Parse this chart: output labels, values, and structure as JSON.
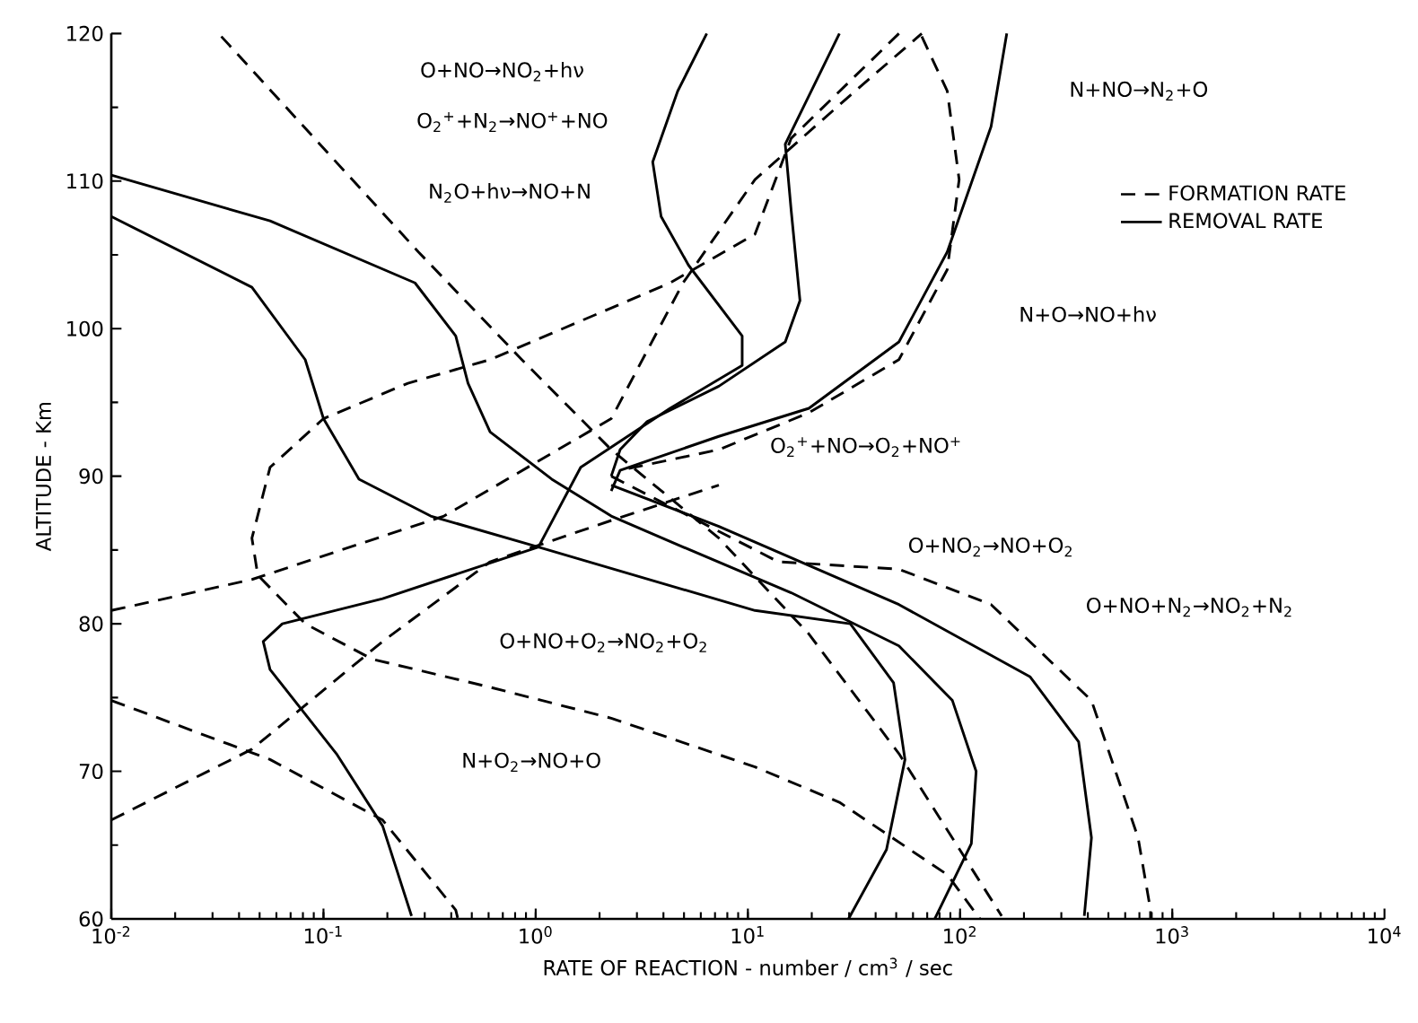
{
  "chart_data": {
    "type": "line",
    "xlabel": "RATE OF REACTION - number / cm$^{3}$ / sec",
    "ylabel": "ALTITUDE - Km",
    "log": "x",
    "xlim": [
      0.01,
      10000
    ],
    "ylim": [
      60,
      120
    ],
    "xticks": [
      {
        "value": 0.01,
        "label": "10$^{-2}$"
      },
      {
        "value": 0.1,
        "label": "10$^{-1}$"
      },
      {
        "value": 1,
        "label": "10$^{0}$"
      },
      {
        "value": 10,
        "label": "10$^{1}$"
      },
      {
        "value": 100,
        "label": "10$^{2}$"
      },
      {
        "value": 1000,
        "label": "10$^{3}$"
      },
      {
        "value": 10000,
        "label": "10$^{4}$"
      }
    ],
    "yticks": [
      60,
      {
        "value": 65,
        "label": null
      },
      70,
      {
        "value": 75,
        "label": null
      },
      80,
      {
        "value": 85,
        "label": null
      },
      90,
      {
        "value": 95,
        "label": null
      },
      100,
      {
        "value": 105,
        "label": null
      },
      110,
      {
        "value": 115,
        "label": null
      },
      120
    ],
    "legend": "top right",
    "series": [
      {
        "name": "FORMATION RATE",
        "line_style": "dashed",
        "color": "#000000",
        "x": [
          0.033,
          0.28,
          0.86,
          2.27,
          7.3,
          19.4,
          51.5,
          157
        ],
        "values": [
          119.8,
          105.2,
          97.9,
          91.8,
          85.8,
          79.3,
          71.2,
          60.2
        ]
      },
      {
        "name": "REMOVAL RATE",
        "line_style": "solid",
        "color": "#000000",
        "x": [
          0.01,
          0.056,
          0.27,
          0.42,
          0.48,
          0.61,
          1.19,
          2.27,
          4.95,
          16,
          51.5,
          92,
          119,
          113,
          76
        ],
        "values": [
          110.4,
          107.3,
          103.1,
          99.5,
          96.3,
          93,
          89.8,
          87.3,
          85.2,
          82.1,
          78.5,
          74.8,
          70,
          65.1,
          60
        ]
      },
      {
        "line_style": "solid",
        "color": "#000000",
        "x": [
          0.01,
          0.046,
          0.082,
          0.1,
          0.147,
          0.32,
          1.03,
          10.8,
          30.4,
          48.6,
          55,
          45,
          29.8
        ],
        "values": [
          107.6,
          102.8,
          97.9,
          93.9,
          89.8,
          87.3,
          85.2,
          80.9,
          80,
          76,
          70.8,
          64.7,
          60
        ]
      },
      {
        "line_style": "solid",
        "color": "#000000",
        "x": [
          6.4,
          4.67,
          3.56,
          3.9,
          5.25,
          9.4,
          9.4,
          4.3,
          1.63,
          1.03,
          0.19,
          0.1,
          0.064,
          0.052,
          0.056,
          0.115,
          0.19,
          0.26
        ],
        "values": [
          120,
          116.1,
          111.3,
          107.6,
          104.3,
          99.5,
          97.5,
          94.6,
          90.6,
          85.2,
          81.7,
          80.7,
          80,
          78.8,
          76.9,
          71.2,
          66.3,
          60.2
        ]
      },
      {
        "line_style": "solid",
        "color": "#000000",
        "x": [
          27,
          15,
          16,
          17.6,
          15,
          7.3,
          3.35,
          2.5,
          2.27
        ],
        "values": [
          120,
          112.5,
          108,
          101.9,
          99.1,
          96.1,
          93.7,
          91.8,
          90
        ]
      },
      {
        "line_style": "solid",
        "color": "#000000",
        "x": [
          166,
          140,
          87,
          51.5,
          19.4,
          7.3,
          2.5,
          2.27
        ],
        "values": [
          120,
          113.7,
          105.2,
          99.1,
          94.6,
          92.7,
          90.4,
          89
        ]
      },
      {
        "line_style": "solid",
        "color": "#000000",
        "x": [
          2.27,
          7.3,
          51.5,
          214,
          362,
          416,
          385
        ],
        "values": [
          89.4,
          86.6,
          81.3,
          76.4,
          72,
          65.5,
          60.2
        ]
      },
      {
        "line_style": "dashed",
        "color": "#000000",
        "x": [
          51.5,
          16,
          10.8,
          4.3,
          0.61,
          0.25,
          0.1,
          0.056,
          0.046,
          0.049,
          0.082,
          0.17,
          0.61,
          2.27,
          10.8,
          27,
          87,
          124
        ],
        "values": [
          120,
          112.9,
          106.4,
          103.1,
          97.9,
          96.3,
          93.9,
          90.6,
          85.8,
          83.3,
          80,
          77.6,
          75.7,
          73.6,
          70.3,
          67.9,
          63,
          60
        ]
      },
      {
        "line_style": "dashed",
        "color": "#000000",
        "x": [
          0.01,
          0.046,
          0.37,
          2.27,
          4.95,
          10.8,
          28.7,
          66
        ],
        "values": [
          80.9,
          83,
          87.3,
          93.9,
          103.1,
          110.1,
          115.5,
          120
        ]
      },
      {
        "line_style": "dashed",
        "color": "#000000",
        "x": [
          66,
          87,
          99,
          87,
          51.5,
          19.4,
          7.3,
          2.5
        ],
        "values": [
          119.8,
          116.1,
          110.1,
          104,
          97.9,
          94.3,
          91.8,
          90.4
        ]
      },
      {
        "line_style": "dashed",
        "color": "#000000",
        "x": [
          0.01,
          0.046,
          0.19,
          0.61,
          2.27,
          7.3
        ],
        "values": [
          66.7,
          71.5,
          78.8,
          84.2,
          87,
          89.4
        ]
      },
      {
        "line_style": "dashed",
        "color": "#000000",
        "x": [
          0.01,
          0.056,
          0.19,
          0.42,
          0.43
        ],
        "values": [
          74.8,
          70.8,
          66.7,
          60.6,
          60
        ]
      },
      {
        "line_style": "dashed",
        "color": "#000000",
        "x": [
          2.27,
          13.9,
          51.5,
          140,
          416,
          690,
          790,
          790
        ],
        "values": [
          90,
          84.2,
          83.7,
          81.3,
          74.8,
          65.5,
          60.6,
          60
        ]
      }
    ],
    "annotations": [
      "O+NO→NO$_{2}$+hν",
      "O$_{2}$$^{+}$+N$_{2}$→NO$^{+}$+NO",
      "N$_{2}$O+hν→NO+N",
      "N+NO→N$_{2}$+O",
      "N+O→NO+hν",
      "O$_{2}$$^{+}$+NO→O$_{2}$+NO$^{+}$",
      "O+NO$_{2}$→NO+O$_{2}$",
      "O+NO+N$_{2}$→NO$_{2}$+N$_{2}$",
      "O+NO+O$_{2}$→NO$_{2}$+O$_{2}$",
      "N+O$_{2}$→NO+O"
    ]
  }
}
